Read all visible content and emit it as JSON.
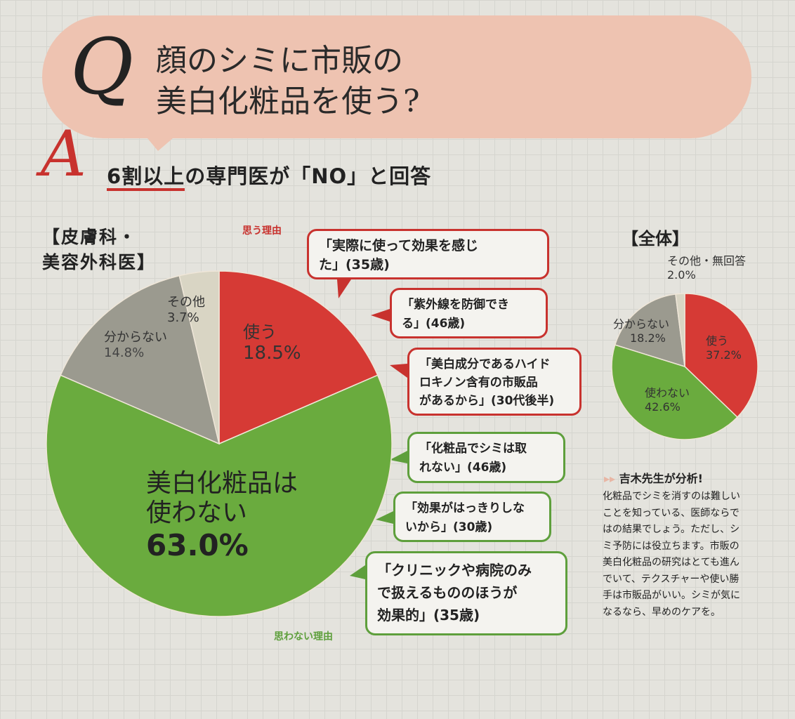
{
  "question": {
    "mark": "Q",
    "title_line1": "顔のシミに市販の",
    "title_line2": "美白化粧品を使う?"
  },
  "answer": {
    "mark": "A",
    "highlight": "6割以上",
    "rest": "の専門医が「NO」と回答"
  },
  "colors": {
    "use": "#d63a35",
    "not_use": "#6aab3e",
    "unknown": "#9b9a8f",
    "other": "#d9d5c4",
    "bubble": "#eec3b1"
  },
  "chart_data": [
    {
      "type": "pie",
      "title": "【皮膚科・美容外科医】",
      "title_line1": "【皮膚科・",
      "title_line2": "美容外科医】",
      "start": "12 o'clock, clockwise",
      "slices": [
        {
          "label": "使う",
          "value": 18.5,
          "display": "18.5%"
        },
        {
          "label": "美白化粧品は使わない",
          "label_line1": "美白化粧品は",
          "label_line2": "使わない",
          "value": 63.0,
          "display": "63.0%"
        },
        {
          "label": "分からない",
          "value": 14.8,
          "display": "14.8%"
        },
        {
          "label": "その他",
          "value": 3.7,
          "display": "3.7%"
        }
      ]
    },
    {
      "type": "pie",
      "title": "【全体】",
      "start": "12 o'clock, clockwise",
      "slices": [
        {
          "label": "使う",
          "value": 37.2,
          "display": "37.2%"
        },
        {
          "label": "使わない",
          "value": 42.6,
          "display": "42.6%"
        },
        {
          "label": "分からない",
          "value": 18.2,
          "display": "18.2%"
        },
        {
          "label": "その他・無回答",
          "value": 2.0,
          "display": "2.0%"
        }
      ]
    }
  ],
  "reasons": {
    "yes_label": "思う理由",
    "no_label": "思わない理由",
    "yes": [
      {
        "l1": "「実際に使って効果を感じ",
        "l2": "た」(35歳)"
      },
      {
        "l1": "「紫外線を防御でき",
        "l2": "る」(46歳)"
      },
      {
        "l1": "「美白成分であるハイド",
        "l2": "ロキノン含有の市販品",
        "l3": "があるから」(30代後半)"
      }
    ],
    "no": [
      {
        "l1": "「化粧品でシミは取",
        "l2": "れない」(46歳)"
      },
      {
        "l1": "「効果がはっきりしな",
        "l2": "いから」(30歳)"
      },
      {
        "l1": "「クリニックや病院のみ",
        "l2": "で扱えるもののほうが",
        "l3": "効果的」(35歳)"
      }
    ]
  },
  "analysis": {
    "icon": "double-chevron-icon",
    "heading": "吉木先生が分析!",
    "lines": [
      "化粧品でシミを消すのは難しい",
      "ことを知っている、医師ならで",
      "はの結果でしょう。ただし、シ",
      "ミ予防には役立ちます。市販の",
      "美白化粧品の研究はとても進ん",
      "でいて、テクスチャーや使い勝",
      "手は市販品がいい。シミが気に",
      "なるなら、早めのケアを。"
    ]
  }
}
